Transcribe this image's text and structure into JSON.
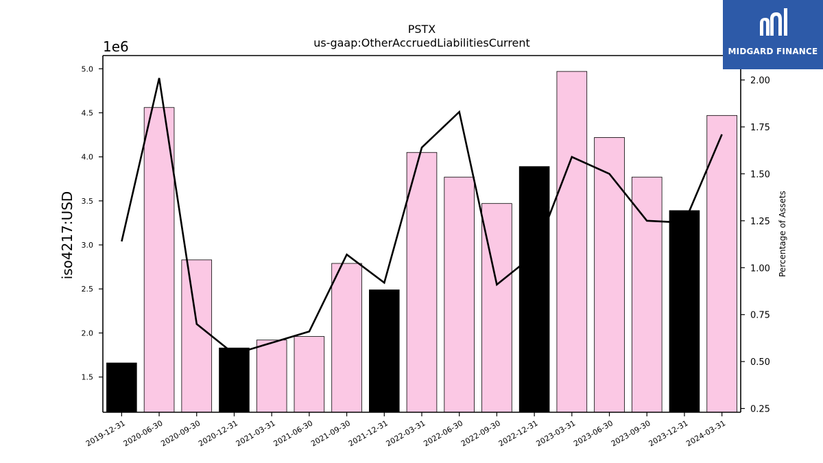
{
  "chart_data": {
    "type": "bar",
    "title": "PSTX",
    "subtitle": "us-gaap:OtherAccruedLiabilitiesCurrent",
    "ylabel": "iso4217:USD",
    "y_offset_label": "1e6",
    "y2label": "Percentage of Assets",
    "ylim": [
      1.1,
      5.15
    ],
    "y2lim": [
      0.23,
      2.13
    ],
    "yticks": [
      "1.5",
      "2.0",
      "2.5",
      "3.0",
      "3.5",
      "4.0",
      "4.5",
      "5.0"
    ],
    "y2ticks": [
      "0.25",
      "0.50",
      "0.75",
      "1.00",
      "1.25",
      "1.50",
      "1.75",
      "2.00"
    ],
    "categories": [
      "2019-12-31",
      "2020-06-30",
      "2020-09-30",
      "2020-12-31",
      "2021-03-31",
      "2021-06-30",
      "2021-09-30",
      "2021-12-31",
      "2022-03-31",
      "2022-06-30",
      "2022-09-30",
      "2022-12-31",
      "2023-03-31",
      "2023-06-30",
      "2023-09-30",
      "2023-12-31",
      "2024-03-31"
    ],
    "series": [
      {
        "values": [
          1.66,
          4.56,
          2.83,
          1.83,
          1.92,
          1.96,
          2.79,
          2.49,
          4.05,
          3.77,
          3.47,
          3.89,
          4.97,
          4.22,
          3.77,
          3.39,
          4.47
        ],
        "colors": [
          "#000000",
          "#fbc8e4",
          "#fbc8e4",
          "#000000",
          "#fbc8e4",
          "#fbc8e4",
          "#fbc8e4",
          "#000000",
          "#fbc8e4",
          "#fbc8e4",
          "#fbc8e4",
          "#000000",
          "#fbc8e4",
          "#fbc8e4",
          "#fbc8e4",
          "#000000",
          "#fbc8e4"
        ]
      },
      {
        "type": "line",
        "axis": "right",
        "color": "#000000",
        "values": [
          1.14,
          2.01,
          0.7,
          0.54,
          0.6,
          0.66,
          1.07,
          0.92,
          1.64,
          1.83,
          0.91,
          1.07,
          1.59,
          1.5,
          1.25,
          1.24,
          1.71
        ]
      }
    ],
    "grid": false
  },
  "logo": {
    "text": "MIDGARD FINANCE",
    "color": "#2d5aa8"
  }
}
